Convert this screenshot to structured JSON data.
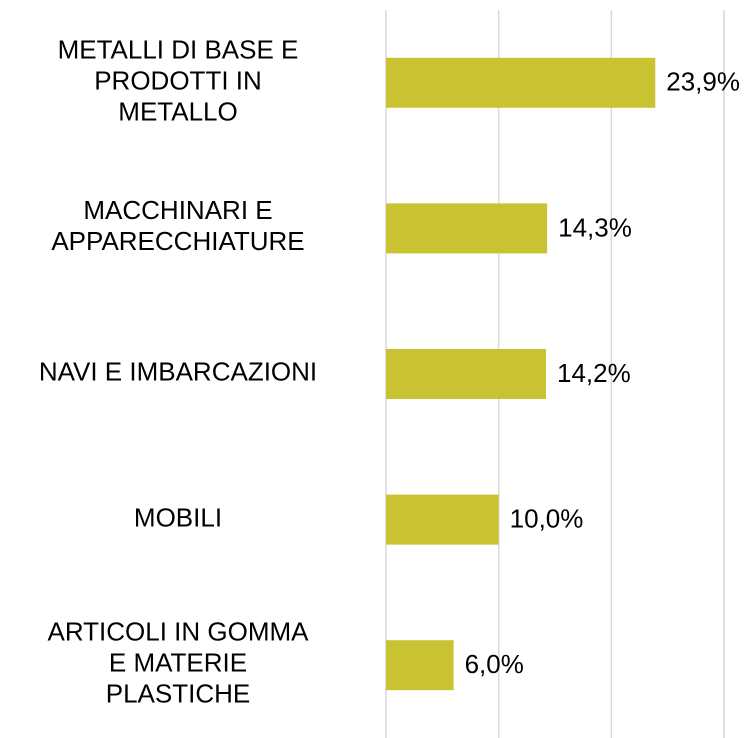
{
  "chart_data": {
    "type": "barh",
    "categories": [
      "METALLI DI BASE E\nPRODOTTI IN\nMETALLO",
      "MACCHINARI E\nAPPARECCHIATURE",
      "NAVI E IMBARCAZIONI",
      "MOBILI",
      "ARTICOLI IN GOMMA\nE MATERIE\nPLASTICHE"
    ],
    "values": [
      23.9,
      14.3,
      14.2,
      10.0,
      6.0
    ],
    "value_labels": [
      "23,9%",
      "14,3%",
      "14,2%",
      "10,0%",
      "6,0%"
    ],
    "color": "#c9c232",
    "xlim": [
      0,
      30
    ],
    "xticks": [
      0,
      10,
      20,
      30
    ],
    "grid": true
  }
}
